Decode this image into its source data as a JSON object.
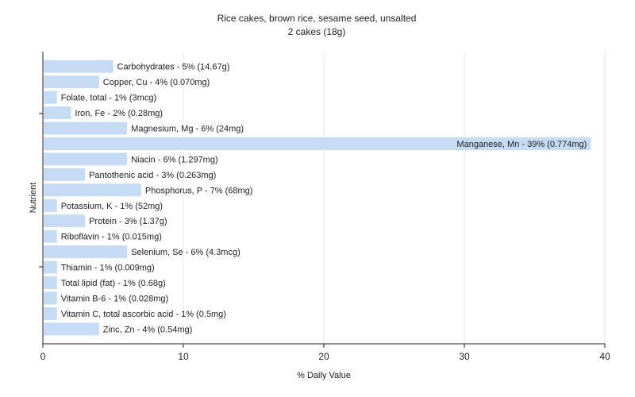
{
  "chart_data": {
    "type": "bar",
    "orientation": "horizontal",
    "title": "Rice cakes, brown rice, sesame seed, unsalted",
    "subtitle": "2 cakes (18g)",
    "xlabel": "% Daily Value",
    "ylabel": "Nutrient",
    "xlim": [
      0,
      40
    ],
    "xticks": [
      "0",
      "10",
      "20",
      "30",
      "40"
    ],
    "grid": true,
    "bar_color": "#c6dcf5",
    "categories": [
      "Carbohydrates",
      "Copper, Cu",
      "Folate, total",
      "Iron, Fe",
      "Magnesium, Mg",
      "Manganese, Mn",
      "Niacin",
      "Pantothenic acid",
      "Phosphorus, P",
      "Potassium, K",
      "Protein",
      "Riboflavin",
      "Selenium, Se",
      "Thiamin",
      "Total lipid (fat)",
      "Vitamin B-6",
      "Vitamin C, total ascorbic acid",
      "Zinc, Zn"
    ],
    "values": [
      5,
      4,
      1,
      2,
      6,
      39,
      6,
      3,
      7,
      1,
      3,
      1,
      6,
      1,
      1,
      1,
      1,
      4
    ],
    "labels": [
      "Carbohydrates - 5% (14.67g)",
      "Copper, Cu - 4% (0.070mg)",
      "Folate, total - 1% (3mcg)",
      "Iron, Fe - 2% (0.28mg)",
      "Magnesium, Mg - 6% (24mg)",
      "Manganese, Mn - 39% (0.774mg)",
      "Niacin - 6% (1.297mg)",
      "Pantothenic acid - 3% (0.263mg)",
      "Phosphorus, P - 7% (68mg)",
      "Potassium, K - 1% (52mg)",
      "Protein - 3% (1.37g)",
      "Riboflavin - 1% (0.015mg)",
      "Selenium, Se - 6% (4.3mcg)",
      "Thiamin - 1% (0.009mg)",
      "Total lipid (fat) - 1% (0.68g)",
      "Vitamin B-6 - 1% (0.028mg)",
      "Vitamin C, total ascorbic acid - 1% (0.5mg)",
      "Zinc, Zn - 4% (0.54mg)"
    ]
  }
}
